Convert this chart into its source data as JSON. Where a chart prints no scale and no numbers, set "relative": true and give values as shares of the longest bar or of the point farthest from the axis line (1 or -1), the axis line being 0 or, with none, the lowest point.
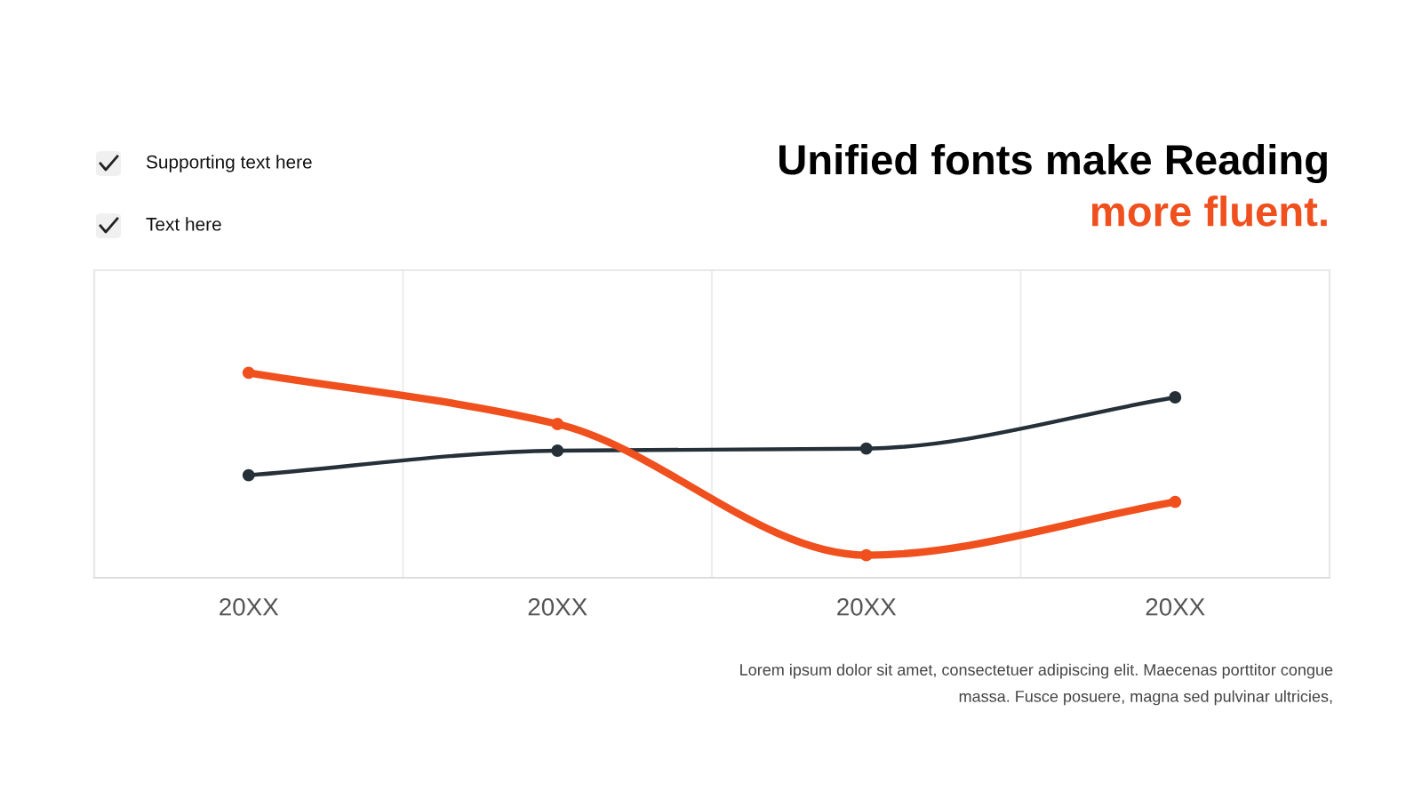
{
  "chart_data": {
    "type": "line",
    "title": "Unified fonts make Reading",
    "subtitle": "more fluent.",
    "categories": [
      "20XX",
      "20XX",
      "20XX",
      "20XX"
    ],
    "relative": true,
    "series": [
      {
        "color": "#253039",
        "values": [
          0.5,
          0.62,
          0.63,
          0.88
        ]
      },
      {
        "color": "#f0501e",
        "values": [
          1,
          0.75,
          0.11,
          0.37
        ]
      }
    ],
    "marker": "circle",
    "grid": "x",
    "annotations": [
      "Supporting text here",
      "Text here",
      "Lorem ipsum dolor sit amet, consectetuer adipiscing elit. Maecenas porttitor congue\nmassa. Fusce posuere, magna sed pulvinar ultricies,"
    ]
  }
}
